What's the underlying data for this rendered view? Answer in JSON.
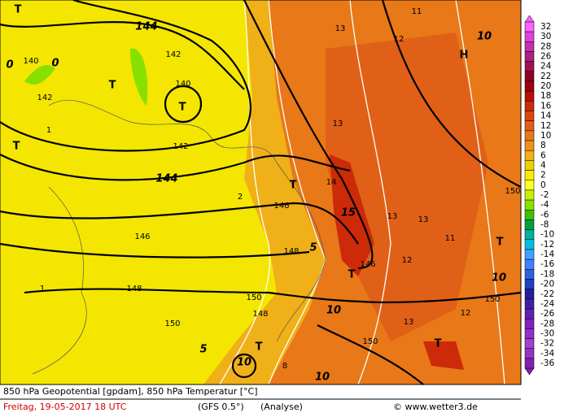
{
  "legend": {
    "levels": [
      32,
      30,
      28,
      26,
      24,
      22,
      20,
      18,
      16,
      14,
      12,
      10,
      8,
      6,
      4,
      2,
      0,
      -2,
      -4,
      -6,
      -8,
      -10,
      -12,
      -14,
      -16,
      -18,
      -20,
      -22,
      -24,
      -26,
      -28,
      -30,
      -32,
      -34,
      -36
    ],
    "colors": [
      "#ff60ff",
      "#e040e0",
      "#c030b0",
      "#b02080",
      "#a01050",
      "#900020",
      "#a00010",
      "#b81008",
      "#cc2a08",
      "#d84810",
      "#e06018",
      "#e87818",
      "#f09020",
      "#f0b018",
      "#f0d000",
      "#f8ec00",
      "#ffff20",
      "#c8f000",
      "#88e000",
      "#40c000",
      "#00a040",
      "#00b0a0",
      "#00c0e0",
      "#40a0ff",
      "#4080ff",
      "#3060e0",
      "#2040c0",
      "#2020a0",
      "#4020a0",
      "#6020b0",
      "#8020c0",
      "#9030c8",
      "#a040d0",
      "#9830c0",
      "#8020b0"
    ]
  },
  "footer": {
    "line1": "850 hPa Geopotential [gpdam], 850 hPa Temperatur [°C]",
    "date": "Freitag, 19-05-2017  18 UTC",
    "model": "(GFS 0.5°)",
    "run": "(Analyse)",
    "credit": "© www.wetter3.de"
  },
  "map": {
    "labels": [
      "T",
      "144",
      "140",
      "0",
      "0",
      "142",
      "T",
      "140",
      "T",
      "142",
      "142",
      "T",
      "144",
      "146",
      "T",
      "146",
      "148",
      "5",
      "148",
      "150",
      "T",
      "146",
      "15",
      "10",
      "T",
      "10",
      "10",
      "T",
      "H",
      "10",
      "150",
      "T",
      "10",
      "150",
      "5",
      "13",
      "12",
      "11",
      "13",
      "14",
      "13",
      "13",
      "11",
      "12",
      "13",
      "12",
      "150",
      "148",
      "150",
      "1",
      "2",
      "1",
      "8"
    ]
  }
}
